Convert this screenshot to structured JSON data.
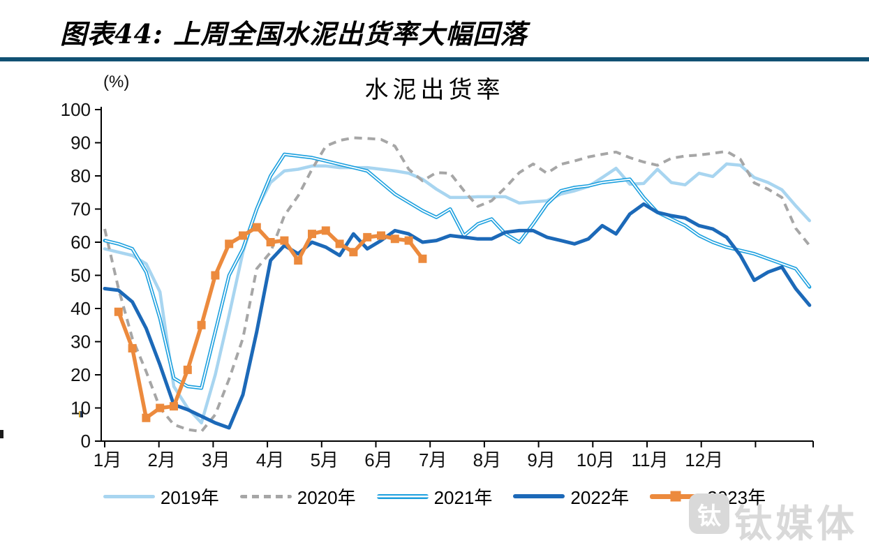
{
  "header": {
    "title": "图表44: 上周全国水泥出货率大幅回落"
  },
  "chart_data": {
    "type": "line",
    "title": "水泥出货率",
    "unit_label": "(%)",
    "ylim": [
      0,
      100
    ],
    "y_ticks": [
      0,
      10,
      20,
      30,
      40,
      50,
      60,
      70,
      80,
      90,
      100
    ],
    "x_tick_labels": [
      "1月",
      "2月",
      "3月",
      "4月",
      "5月",
      "6月",
      "7月",
      "8月",
      "9月",
      "10月",
      "11月",
      "12月"
    ],
    "x_resolution": "weekly (52 points per year)",
    "grid": false,
    "legend_position": "bottom",
    "series": [
      {
        "name": "2019年",
        "color": "#A8D5F0",
        "line_style": "solid",
        "values": [
          58,
          57,
          56,
          53.5,
          45,
          16.5,
          10,
          5.5,
          20,
          38,
          57,
          70,
          78,
          81.5,
          82,
          83,
          83,
          82.5,
          82.5,
          82.5,
          82,
          81.5,
          80.8,
          79,
          76,
          73.5,
          73.5,
          73.7,
          73.7,
          73.7,
          71.8,
          72.2,
          72.5,
          74.5,
          75.5,
          76.8,
          79.5,
          82.3,
          77.5,
          77.7,
          82,
          78,
          77.3,
          80.8,
          79.8,
          83.6,
          83.2,
          79.5,
          78,
          75.8,
          71,
          66.5
        ]
      },
      {
        "name": "2020年",
        "color": "#A6A6A6",
        "line_style": "dashed",
        "values": [
          64,
          46,
          31,
          21,
          10,
          5,
          3.5,
          2.9,
          8,
          18.7,
          31,
          52,
          57,
          68,
          74,
          82,
          89,
          90.7,
          91.5,
          91.3,
          91,
          89,
          82,
          78.5,
          81,
          80.8,
          75.5,
          70.8,
          72.5,
          76.5,
          81,
          83.6,
          80.8,
          83.5,
          84.5,
          85.7,
          86.5,
          87.2,
          85.5,
          84.2,
          83.2,
          85.3,
          86,
          86.3,
          86.8,
          87.4,
          85,
          77.9,
          76,
          73.5,
          64.2,
          59
        ]
      },
      {
        "name": "2021年",
        "color": "#1B9FDE",
        "line_style": "double",
        "values": [
          60.5,
          59.5,
          58,
          51,
          37,
          19,
          16.5,
          16,
          33,
          50,
          58,
          70,
          80,
          86.5,
          86,
          85.5,
          84.5,
          83.5,
          82.5,
          81.5,
          78,
          74.5,
          72,
          69.5,
          67.5,
          70,
          62,
          65.5,
          67,
          62.5,
          60,
          65.5,
          71.5,
          75.5,
          76.5,
          77,
          78,
          78.5,
          79,
          73.5,
          69,
          67,
          65,
          62,
          60,
          58.5,
          57.5,
          56.5,
          55,
          53.5,
          52,
          46.5
        ]
      },
      {
        "name": "2022年",
        "color": "#1C69B8",
        "line_style": "solid-thick",
        "values": [
          46,
          45.5,
          42,
          34,
          23,
          11,
          9.5,
          7.5,
          5.5,
          4,
          14,
          33,
          54.5,
          59,
          56.5,
          60,
          58.5,
          56,
          62.5,
          58,
          60.5,
          63.5,
          62.5,
          60,
          60.5,
          62,
          61.5,
          61,
          61,
          63,
          63.5,
          63.5,
          61.5,
          60.5,
          59.5,
          61,
          65,
          62.5,
          68.5,
          71.5,
          69,
          68,
          67.3,
          65,
          64,
          61.5,
          56,
          48.5,
          51,
          52.5,
          46,
          41
        ]
      },
      {
        "name": "2023年",
        "color": "#EC8A3D",
        "line_style": "solid-square-markers",
        "values": [
          null,
          39,
          28,
          7,
          10,
          10.5,
          21.5,
          35,
          50,
          59.5,
          62,
          64.5,
          60,
          60.5,
          54.5,
          62.5,
          63.5,
          59.5,
          57,
          61.5,
          62,
          61,
          60.5,
          55,
          null,
          null,
          null,
          null,
          null,
          null,
          null,
          null,
          null,
          null,
          null,
          null,
          null,
          null,
          null,
          null,
          null,
          null,
          null,
          null,
          null,
          null,
          null,
          null,
          null,
          null,
          null,
          null
        ]
      }
    ]
  },
  "watermark": {
    "logo_glyph": "钛",
    "text": "钛媒体"
  }
}
